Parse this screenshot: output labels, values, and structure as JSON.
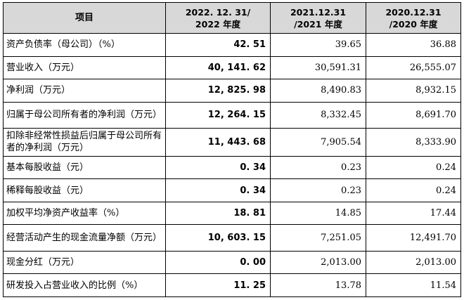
{
  "header": {
    "item": "项目",
    "col_2022_line1": "2022. 12. 31/",
    "col_2022_line2": "2022 年度",
    "col_2021_line1": "2021.12.31",
    "col_2021_line2": "/2021 年度",
    "col_2020_line1": "2020.12.31",
    "col_2020_line2": "/2020 年度"
  },
  "rows": [
    {
      "label": "资产负债率（母公司）（%）",
      "v2022": "42. 51",
      "v2021": "39.65",
      "v2020": "36.88"
    },
    {
      "label": "营业收入（万元）",
      "v2022": "40, 141. 62",
      "v2021": "30,591.31",
      "v2020": "26,555.07"
    },
    {
      "label": "净利润（万元）",
      "v2022": "12, 825. 98",
      "v2021": "8,490.83",
      "v2020": "8,932.15"
    },
    {
      "label": "归属于母公司所有者的净利润（万元）",
      "v2022": "12, 264. 15",
      "v2021": "8,332.45",
      "v2020": "8,691.70"
    },
    {
      "label": "扣除非经常性损益后归属于母公司所有者的净利润（万元）",
      "v2022": "11, 443. 68",
      "v2021": "7,905.54",
      "v2020": "8,333.90"
    },
    {
      "label": "基本每股收益（元）",
      "v2022": "0. 34",
      "v2021": "0.23",
      "v2020": "0.24"
    },
    {
      "label": "稀释每股收益（元）",
      "v2022": "0. 34",
      "v2021": "0.23",
      "v2020": "0.24"
    },
    {
      "label": "加权平均净资产收益率（%）",
      "v2022": "18. 81",
      "v2021": "14.85",
      "v2020": "17.44"
    },
    {
      "label": "经营活动产生的现金流量净额（万元）",
      "v2022": "10, 603. 15",
      "v2021": "7,251.05",
      "v2020": "12,491.70"
    },
    {
      "label": "现金分红（万元）",
      "v2022": "0. 00",
      "v2021": "2,013.00",
      "v2020": "2,013.00"
    },
    {
      "label": "研发投入占营业收入的比例（%）",
      "v2022": "11. 25",
      "v2021": "13.78",
      "v2020": "11.54"
    }
  ]
}
